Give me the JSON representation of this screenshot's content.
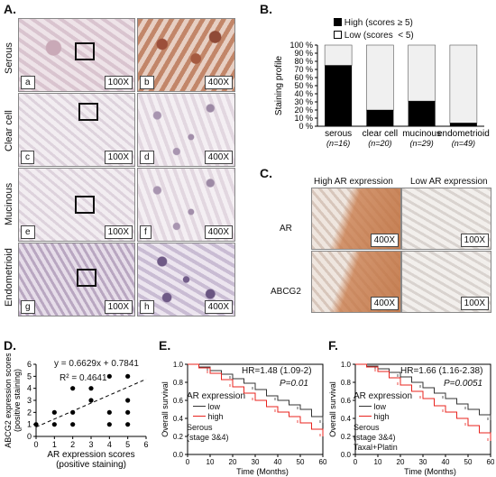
{
  "panels": {
    "A": "A.",
    "B": "B.",
    "C": "C.",
    "D": "D.",
    "E": "E.",
    "F": "F."
  },
  "panelA": {
    "rows": [
      "Serous",
      "Clear cell",
      "Mucinous",
      "Endometrioid"
    ],
    "sublabels": [
      "a",
      "b",
      "c",
      "d",
      "e",
      "f",
      "g",
      "h"
    ],
    "mag_low": "100X",
    "mag_high": "400X"
  },
  "panelB": {
    "legend_high": "High (scores ≥ 5)",
    "legend_low": "Low  (scores  < 5)",
    "ylabel": "Staining profile"
  },
  "panelC": {
    "col_high": "High AR expression",
    "col_low": "Low AR expression",
    "row_ar": "AR",
    "row_abcg2": "ABCG2",
    "mag_high": "400X",
    "mag_low": "100X"
  },
  "panelD": {
    "equation": "y = 0.6629x + 0.7841",
    "r2": "R² = 0.4641"
  },
  "panelE": {
    "hr": "HR=1.48 (1.09-2)",
    "p": "P=0.01",
    "legend_title": "AR expression",
    "low": "low",
    "high": "high",
    "cohort1": "Serous",
    "cohort2": "(stage 3&4)"
  },
  "panelF": {
    "hr": "HR=1.66 (1.16-2.38)",
    "p": "P=0.0051",
    "legend_title": "AR expression",
    "low": "low",
    "high": "high",
    "cohort1": "Serous",
    "cohort2": "(stage 3&4)",
    "cohort3": "Taxal+Platin"
  },
  "colors": {
    "high": "#000000",
    "low": "#ffffff",
    "km_low": "#333333",
    "km_high": "#e8231e"
  },
  "chart_data": [
    {
      "type": "bar",
      "stacked": true,
      "categories": [
        "serous",
        "clear cell",
        "mucinous",
        "endometrioid"
      ],
      "n_labels": [
        "(n=16)",
        "(n=20)",
        "(n=29)",
        "(n=49)"
      ],
      "series": [
        {
          "name": "High (scores ≥ 5)",
          "values": [
            75,
            20,
            31,
            4
          ]
        },
        {
          "name": "Low  (scores  < 5)",
          "values": [
            25,
            80,
            69,
            96
          ]
        }
      ],
      "ylabel": "Staining profile",
      "ylim": [
        0,
        100
      ],
      "yticks": [
        "0 %",
        "10 %",
        "20 %",
        "30 %",
        "40 %",
        "50 %",
        "60 %",
        "70 %",
        "80 %",
        "90 %",
        "100 %"
      ]
    },
    {
      "type": "scatter",
      "xlabel": "AR expression scores\n(positive staining)",
      "ylabel": "ABCG2 expression scores\n(positive staining)",
      "xlim": [
        0,
        6
      ],
      "ylim": [
        0,
        6
      ],
      "xticks": [
        0,
        1,
        2,
        3,
        4,
        5,
        6
      ],
      "yticks": [
        0,
        1,
        2,
        3,
        4,
        5,
        6
      ],
      "points": [
        [
          0,
          1
        ],
        [
          1,
          1
        ],
        [
          1,
          2
        ],
        [
          2,
          1
        ],
        [
          2,
          2
        ],
        [
          2,
          4
        ],
        [
          3,
          3
        ],
        [
          3,
          4
        ],
        [
          4,
          1
        ],
        [
          4,
          2
        ],
        [
          4,
          5
        ],
        [
          5,
          1
        ],
        [
          5,
          2
        ],
        [
          5,
          3
        ],
        [
          5,
          5
        ]
      ],
      "trend": {
        "slope": 0.6629,
        "intercept": 0.7841
      }
    },
    {
      "type": "line",
      "xlabel": "Time (Months)",
      "ylabel": "Overall survival",
      "xlim": [
        0,
        60
      ],
      "ylim": [
        0,
        1
      ],
      "xticks": [
        0,
        10,
        20,
        30,
        40,
        50,
        60
      ],
      "yticks": [
        "0.0",
        "0.2",
        "0.4",
        "0.6",
        "0.8",
        "1.0"
      ],
      "series": [
        {
          "name": "low",
          "x": [
            0,
            5,
            10,
            15,
            20,
            25,
            30,
            35,
            40,
            45,
            50,
            55,
            60
          ],
          "y": [
            1.0,
            0.97,
            0.93,
            0.89,
            0.84,
            0.79,
            0.72,
            0.65,
            0.6,
            0.55,
            0.5,
            0.42,
            0.35
          ]
        },
        {
          "name": "high",
          "x": [
            0,
            5,
            10,
            15,
            20,
            25,
            30,
            35,
            40,
            45,
            50,
            55,
            60
          ],
          "y": [
            1.0,
            0.96,
            0.9,
            0.83,
            0.75,
            0.68,
            0.6,
            0.53,
            0.47,
            0.42,
            0.35,
            0.28,
            0.2
          ]
        }
      ]
    },
    {
      "type": "line",
      "xlabel": "Time (Months)",
      "ylabel": "Overall survival",
      "xlim": [
        0,
        60
      ],
      "ylim": [
        0,
        1
      ],
      "xticks": [
        0,
        10,
        20,
        30,
        40,
        50,
        60
      ],
      "yticks": [
        "0.0",
        "0.2",
        "0.4",
        "0.6",
        "0.8",
        "1.0"
      ],
      "series": [
        {
          "name": "low",
          "x": [
            0,
            5,
            10,
            15,
            20,
            25,
            30,
            35,
            40,
            45,
            50,
            55,
            60
          ],
          "y": [
            1.0,
            0.98,
            0.95,
            0.91,
            0.86,
            0.8,
            0.74,
            0.68,
            0.62,
            0.56,
            0.5,
            0.44,
            0.38
          ]
        },
        {
          "name": "high",
          "x": [
            0,
            5,
            10,
            15,
            20,
            25,
            30,
            35,
            40,
            45,
            50,
            55,
            60
          ],
          "y": [
            1.0,
            0.97,
            0.92,
            0.85,
            0.77,
            0.7,
            0.62,
            0.54,
            0.47,
            0.4,
            0.32,
            0.24,
            0.15
          ]
        }
      ]
    }
  ]
}
